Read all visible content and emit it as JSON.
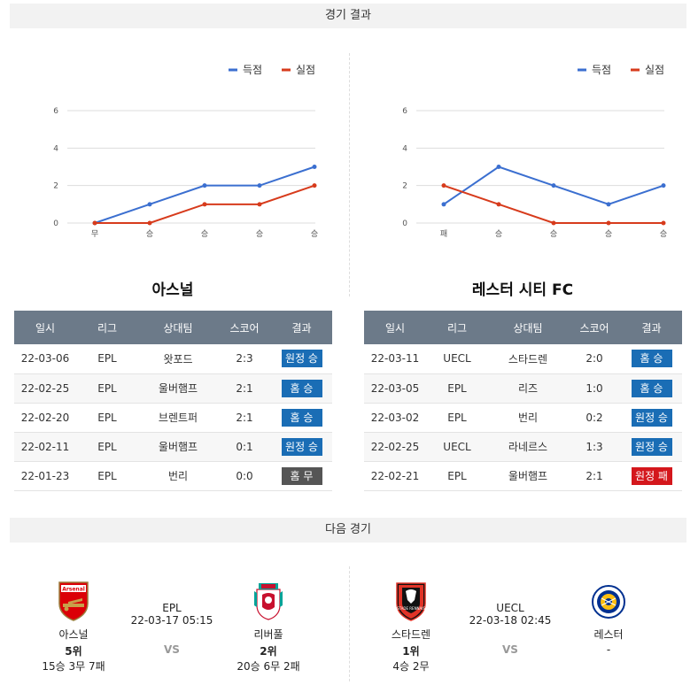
{
  "results_header": "경기 결과",
  "next_header": "다음 경기",
  "legend": {
    "scored": "득점",
    "conceded": "실점"
  },
  "colors": {
    "scored": "#3b6fd0",
    "conceded": "#d73b1c",
    "win": "#1a6db5",
    "loss": "#d4171c",
    "draw": "#555555"
  },
  "chart_data": [
    {
      "type": "line",
      "categories": [
        "무",
        "승",
        "승",
        "승",
        "승"
      ],
      "ylim": [
        0,
        6
      ],
      "yticks": [
        0,
        2,
        4,
        6
      ],
      "series": [
        {
          "name": "득점",
          "values": [
            0,
            1,
            2,
            2,
            3
          ]
        },
        {
          "name": "실점",
          "values": [
            0,
            0,
            1,
            1,
            2
          ]
        }
      ],
      "legend": "top-right",
      "grid": true
    },
    {
      "type": "line",
      "categories": [
        "패",
        "승",
        "승",
        "승",
        "승"
      ],
      "ylim": [
        0,
        6
      ],
      "yticks": [
        0,
        2,
        4,
        6
      ],
      "series": [
        {
          "name": "득점",
          "values": [
            1,
            3,
            2,
            1,
            2
          ]
        },
        {
          "name": "실점",
          "values": [
            2,
            1,
            0,
            0,
            0
          ]
        }
      ],
      "legend": "top-right",
      "grid": true
    }
  ],
  "teams": [
    {
      "name": "아스널",
      "columns": [
        "일시",
        "리그",
        "상대팀",
        "스코어",
        "결과"
      ],
      "rows": [
        {
          "date": "22-03-06",
          "league": "EPL",
          "opponent": "왓포드",
          "score": "2:3",
          "result": "원정 승",
          "kind": "blue"
        },
        {
          "date": "22-02-25",
          "league": "EPL",
          "opponent": "울버햄프",
          "score": "2:1",
          "result": "홈 승",
          "kind": "blue"
        },
        {
          "date": "22-02-20",
          "league": "EPL",
          "opponent": "브렌트퍼",
          "score": "2:1",
          "result": "홈 승",
          "kind": "blue"
        },
        {
          "date": "22-02-11",
          "league": "EPL",
          "opponent": "울버햄프",
          "score": "0:1",
          "result": "원정 승",
          "kind": "blue"
        },
        {
          "date": "22-01-23",
          "league": "EPL",
          "opponent": "번리",
          "score": "0:0",
          "result": "홈 무",
          "kind": "gray"
        }
      ]
    },
    {
      "name": "레스터 시티 FC",
      "columns": [
        "일시",
        "리그",
        "상대팀",
        "스코어",
        "결과"
      ],
      "rows": [
        {
          "date": "22-03-11",
          "league": "UECL",
          "opponent": "스타드렌",
          "score": "2:0",
          "result": "홈 승",
          "kind": "blue"
        },
        {
          "date": "22-03-05",
          "league": "EPL",
          "opponent": "리즈",
          "score": "1:0",
          "result": "홈 승",
          "kind": "blue"
        },
        {
          "date": "22-03-02",
          "league": "EPL",
          "opponent": "번리",
          "score": "0:2",
          "result": "원정 승",
          "kind": "blue"
        },
        {
          "date": "22-02-25",
          "league": "UECL",
          "opponent": "라네르스",
          "score": "1:3",
          "result": "원정 승",
          "kind": "blue"
        },
        {
          "date": "22-02-21",
          "league": "EPL",
          "opponent": "울버햄프",
          "score": "2:1",
          "result": "원정 패",
          "kind": "red"
        }
      ]
    }
  ],
  "next_matches": [
    {
      "league": "EPL",
      "datetime": "22-03-17 05:15",
      "vs": "VS",
      "home": {
        "name": "아스널",
        "rank": "5위",
        "record": "15승 3무 7패",
        "logo": "arsenal-logo"
      },
      "away": {
        "name": "리버풀",
        "rank": "2위",
        "record": "20승 6무 2패",
        "logo": "liverpool-logo"
      }
    },
    {
      "league": "UECL",
      "datetime": "22-03-18 02:45",
      "vs": "VS",
      "home": {
        "name": "스타드렌",
        "rank": "1위",
        "record": "4승 2무",
        "logo": "rennes-logo"
      },
      "away": {
        "name": "레스터",
        "rank": "",
        "record": "-",
        "logo": "leicester-logo"
      }
    }
  ]
}
